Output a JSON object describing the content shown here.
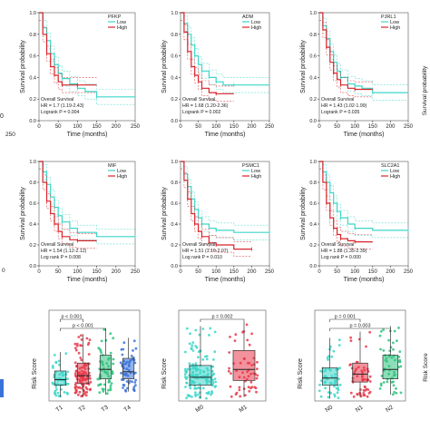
{
  "chart_data": [
    {
      "type": "line",
      "gene": "PFKP",
      "xlabel": "Time (months)",
      "ylabel": "Survival probability",
      "xticks": [
        "0",
        "50",
        "100",
        "150",
        "200",
        "250"
      ],
      "yticks": [
        "0.0",
        "0.2",
        "0.4",
        "0.6",
        "0.8",
        "1.0"
      ],
      "xlim": [
        0,
        250
      ],
      "ylim": [
        0,
        1
      ],
      "legend_title": "PFKP",
      "legend_position": "top-right",
      "annotation": [
        "Overall Survival",
        "HR = 1.7 (1.19-2.43)",
        "Logrank P = 0.004"
      ],
      "series": [
        {
          "name": "Low",
          "color": "#3dd6c8",
          "x": [
            0,
            10,
            20,
            30,
            40,
            50,
            60,
            80,
            100,
            120,
            150,
            250
          ],
          "y": [
            1,
            0.86,
            0.74,
            0.62,
            0.52,
            0.44,
            0.39,
            0.34,
            0.3,
            0.27,
            0.22,
            0.22
          ]
        },
        {
          "name": "High",
          "color": "#d8232a",
          "x": [
            0,
            10,
            20,
            30,
            40,
            50,
            60,
            80,
            100,
            150
          ],
          "y": [
            1,
            0.8,
            0.62,
            0.5,
            0.42,
            0.36,
            0.33,
            0.33,
            0.33,
            0.33
          ]
        }
      ]
    },
    {
      "type": "line",
      "gene": "ADM",
      "xlabel": "Time (months)",
      "ylabel": "Survival probability",
      "xticks": [
        "0",
        "50",
        "100",
        "150",
        "200",
        "250"
      ],
      "yticks": [
        "0.0",
        "0.2",
        "0.4",
        "0.6",
        "0.8",
        "1.0"
      ],
      "xlim": [
        0,
        250
      ],
      "ylim": [
        0,
        1
      ],
      "legend_title": "ADM",
      "legend_position": "top-right",
      "annotation": [
        "Overall Survival",
        "HR = 1.68 (1.20-2.36)",
        "Logrank P = 0.002"
      ],
      "series": [
        {
          "name": "Low",
          "color": "#3dd6c8",
          "x": [
            0,
            10,
            20,
            30,
            40,
            50,
            60,
            80,
            100,
            120,
            150,
            250
          ],
          "y": [
            1,
            0.9,
            0.8,
            0.7,
            0.6,
            0.52,
            0.46,
            0.4,
            0.36,
            0.33,
            0.33,
            0.33
          ]
        },
        {
          "name": "High",
          "color": "#d8232a",
          "x": [
            0,
            10,
            20,
            30,
            40,
            50,
            60,
            80,
            100,
            150
          ],
          "y": [
            1,
            0.82,
            0.64,
            0.5,
            0.42,
            0.36,
            0.3,
            0.26,
            0.25,
            0.25
          ]
        }
      ]
    },
    {
      "type": "line",
      "gene": "PJRL1",
      "xlabel": "Time (months)",
      "ylabel": "Survival probability",
      "xticks": [
        "0",
        "50",
        "100",
        "150",
        "200",
        "250"
      ],
      "yticks": [
        "0.0",
        "0.2",
        "0.4",
        "0.6",
        "0.8",
        "1.0"
      ],
      "xlim": [
        0,
        250
      ],
      "ylim": [
        0,
        1
      ],
      "legend_title": "PJRL1",
      "legend_position": "top-right",
      "annotation": [
        "Overall Survival",
        "HR = 1.43 (1.02-1.99)",
        "Logrank P = 0.035"
      ],
      "series": [
        {
          "name": "Low",
          "color": "#3dd6c8",
          "x": [
            0,
            10,
            20,
            30,
            40,
            50,
            60,
            80,
            100,
            120,
            150,
            250
          ],
          "y": [
            1,
            0.88,
            0.76,
            0.64,
            0.54,
            0.46,
            0.4,
            0.34,
            0.32,
            0.3,
            0.26,
            0.26
          ]
        },
        {
          "name": "High",
          "color": "#d8232a",
          "x": [
            0,
            10,
            20,
            30,
            40,
            50,
            60,
            80,
            100,
            150
          ],
          "y": [
            1,
            0.84,
            0.68,
            0.54,
            0.44,
            0.38,
            0.33,
            0.3,
            0.29,
            0.29
          ]
        }
      ]
    },
    {
      "type": "line",
      "gene": "MIF",
      "xlabel": "Time (months)",
      "ylabel": "Survival probability",
      "xticks": [
        "0",
        "50",
        "100",
        "150",
        "200",
        "250"
      ],
      "yticks": [
        "0.0",
        "0.2",
        "0.4",
        "0.6",
        "0.8",
        "1.0"
      ],
      "xlim": [
        0,
        250
      ],
      "ylim": [
        0,
        1
      ],
      "legend_title": "MIF",
      "legend_position": "top-right",
      "annotation": [
        "Overall Survival",
        "HR = 1.54 (1.12-2.12)",
        "Log rank P = 0.008"
      ],
      "series": [
        {
          "name": "Low",
          "color": "#3dd6c8",
          "x": [
            0,
            10,
            20,
            30,
            40,
            50,
            60,
            80,
            100,
            150,
            250
          ],
          "y": [
            1,
            0.9,
            0.78,
            0.66,
            0.56,
            0.48,
            0.42,
            0.36,
            0.32,
            0.28,
            0.28
          ]
        },
        {
          "name": "High",
          "color": "#d8232a",
          "x": [
            0,
            10,
            20,
            30,
            40,
            50,
            60,
            80,
            100,
            150
          ],
          "y": [
            1,
            0.8,
            0.62,
            0.5,
            0.4,
            0.33,
            0.28,
            0.25,
            0.24,
            0.24
          ]
        }
      ]
    },
    {
      "type": "line",
      "gene": "PSMC1",
      "xlabel": "Time (months)",
      "ylabel": "Survival probability",
      "xticks": [
        "0",
        "50",
        "100",
        "150",
        "200",
        "250"
      ],
      "yticks": [
        "0.0",
        "0.2",
        "0.4",
        "0.6",
        "0.8",
        "1.0"
      ],
      "xlim": [
        0,
        250
      ],
      "ylim": [
        0,
        1
      ],
      "legend_title": "PSMC1",
      "legend_position": "top-right",
      "annotation": [
        "Overall Survival",
        "HR = 1.51 (1.10-2.07)",
        "Log rank P = 0.010"
      ],
      "series": [
        {
          "name": "Low",
          "color": "#3dd6c8",
          "x": [
            0,
            10,
            20,
            30,
            40,
            50,
            60,
            80,
            100,
            150,
            250
          ],
          "y": [
            1,
            0.88,
            0.76,
            0.64,
            0.54,
            0.46,
            0.4,
            0.36,
            0.34,
            0.32,
            0.32
          ]
        },
        {
          "name": "High",
          "color": "#d8232a",
          "x": [
            0,
            10,
            20,
            30,
            40,
            50,
            60,
            80,
            100,
            150,
            200
          ],
          "y": [
            1,
            0.82,
            0.64,
            0.5,
            0.4,
            0.33,
            0.28,
            0.22,
            0.2,
            0.16,
            0.16
          ]
        }
      ]
    },
    {
      "type": "line",
      "gene": "SLC2A1",
      "xlabel": "Time (months)",
      "ylabel": "Survival probability",
      "xticks": [
        "0",
        "50",
        "100",
        "150",
        "200",
        "250"
      ],
      "yticks": [
        "0.0",
        "0.2",
        "0.4",
        "0.6",
        "0.8",
        "1.0"
      ],
      "xlim": [
        0,
        250
      ],
      "ylim": [
        0,
        1
      ],
      "legend_title": "SLC2A1",
      "legend_position": "top-right",
      "annotation": [
        "Overall Survival",
        "HR = 1.88 (1.35-2.39)",
        "Log rank P = 0.000"
      ],
      "series": [
        {
          "name": "Low",
          "color": "#3dd6c8",
          "x": [
            0,
            10,
            20,
            30,
            40,
            50,
            60,
            80,
            100,
            150,
            250
          ],
          "y": [
            1,
            0.9,
            0.8,
            0.7,
            0.6,
            0.52,
            0.46,
            0.4,
            0.36,
            0.34,
            0.34
          ]
        },
        {
          "name": "High",
          "color": "#d8232a",
          "x": [
            0,
            10,
            20,
            30,
            40,
            50,
            60,
            80,
            100,
            150
          ],
          "y": [
            1,
            0.8,
            0.6,
            0.46,
            0.36,
            0.3,
            0.26,
            0.24,
            0.23,
            0.23
          ]
        }
      ]
    },
    {
      "type": "box",
      "ylabel": "Risk Score",
      "categories": [
        "T1",
        "T2",
        "T3",
        "T4"
      ],
      "colors": [
        "#3dd6c8",
        "#e8394a",
        "#2ec27e",
        "#3a72d8"
      ],
      "pvalues": [
        "p < 0.001",
        "p < 0.001"
      ],
      "boxes": [
        {
          "q1": 0.2,
          "median": 0.27,
          "q3": 0.38,
          "lo": 0.05,
          "hi": 0.62
        },
        {
          "q1": 0.22,
          "median": 0.32,
          "q3": 0.48,
          "lo": 0.05,
          "hi": 0.85
        },
        {
          "q1": 0.28,
          "median": 0.4,
          "q3": 0.58,
          "lo": 0.08,
          "hi": 0.92
        },
        {
          "q1": 0.28,
          "median": 0.37,
          "q3": 0.54,
          "lo": 0.12,
          "hi": 0.8
        }
      ]
    },
    {
      "type": "box",
      "ylabel": "Risk Score",
      "categories": [
        "M0",
        "M1"
      ],
      "colors": [
        "#3dd6c8",
        "#e8394a"
      ],
      "pvalues": [
        "p = 0.002"
      ],
      "boxes": [
        {
          "q1": 0.2,
          "median": 0.3,
          "q3": 0.45,
          "lo": 0.03,
          "hi": 0.95
        },
        {
          "q1": 0.26,
          "median": 0.4,
          "q3": 0.64,
          "lo": 0.05,
          "hi": 1.0
        }
      ]
    },
    {
      "type": "box",
      "ylabel": "Risk Score",
      "categories": [
        "N0",
        "N1",
        "N2"
      ],
      "colors": [
        "#3dd6c8",
        "#e8394a",
        "#2ec27e"
      ],
      "pvalues": [
        "p = 0.001",
        "p = 0.003"
      ],
      "boxes": [
        {
          "q1": 0.2,
          "median": 0.29,
          "q3": 0.42,
          "lo": 0.03,
          "hi": 0.8
        },
        {
          "q1": 0.24,
          "median": 0.34,
          "q3": 0.48,
          "lo": 0.05,
          "hi": 0.88
        },
        {
          "q1": 0.28,
          "median": 0.4,
          "q3": 0.58,
          "lo": 0.08,
          "hi": 0.95
        }
      ]
    }
  ],
  "edge_fragments": {
    "left_ticks_row1": [
      "0",
      "250"
    ],
    "left_tick_row2": "0",
    "right_label": "Survival probability",
    "right_label_row3": "Risk Score"
  }
}
